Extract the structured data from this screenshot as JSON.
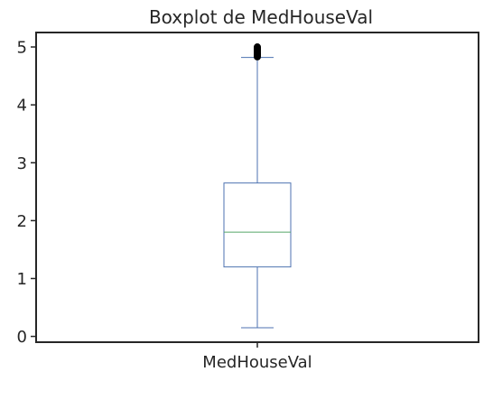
{
  "chart_data": {
    "type": "box",
    "title": "Boxplot de MedHouseVal",
    "xlabel": "",
    "ylabel": "",
    "categories": [
      "MedHouseVal"
    ],
    "boxes": [
      {
        "name": "MedHouseVal",
        "whisker_low": 0.15,
        "q1": 1.2,
        "median": 1.8,
        "q3": 2.65,
        "whisker_high": 4.82,
        "outliers": [
          4.83,
          4.85,
          4.87,
          4.88,
          4.9,
          4.92,
          4.94,
          4.96,
          4.98,
          5.0
        ]
      }
    ],
    "ylim": [
      -0.1,
      5.25
    ],
    "yticks": [
      0,
      1,
      2,
      3,
      4,
      5
    ],
    "grid": false,
    "colors": {
      "box": "#4c72b0",
      "median": "#55a868",
      "outlier": "#000000",
      "axes": "#262626"
    }
  }
}
